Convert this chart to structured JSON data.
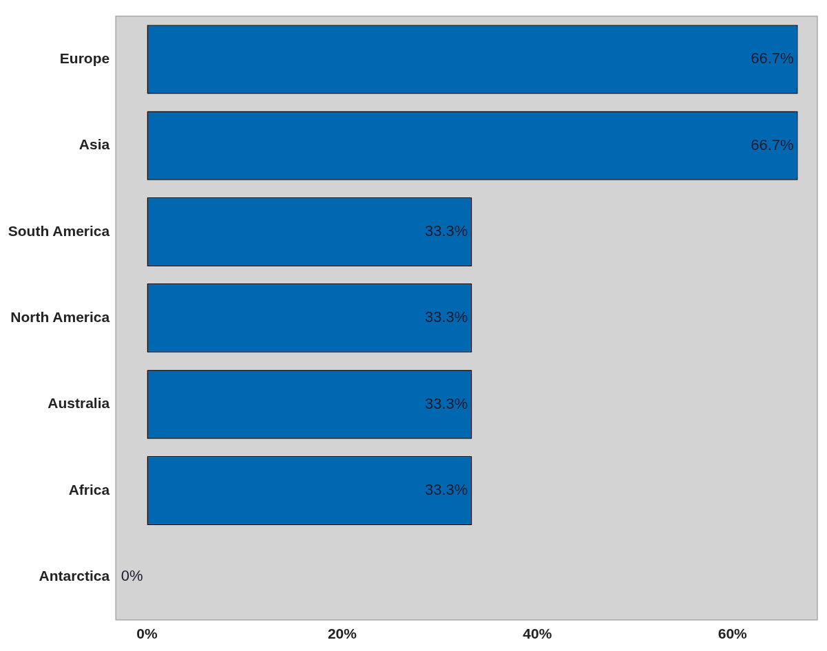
{
  "chart_data": {
    "type": "bar",
    "orientation": "horizontal",
    "categories": [
      "Europe",
      "Asia",
      "South America",
      "North America",
      "Australia",
      "Africa",
      "Antarctica"
    ],
    "values": [
      66.7,
      66.7,
      33.3,
      33.3,
      33.3,
      33.3,
      0
    ],
    "value_labels": [
      "66.7%",
      "66.7%",
      "33.3%",
      "33.3%",
      "33.3%",
      "33.3%",
      "0%"
    ],
    "color": "#0068b0",
    "xlim": [
      -3.2,
      68.7
    ],
    "xticks": [
      {
        "value": 0,
        "label": "0%"
      },
      {
        "value": 20,
        "label": "20%"
      },
      {
        "value": 40,
        "label": "40%"
      },
      {
        "value": 60,
        "label": "60%"
      }
    ],
    "grid": false,
    "legend": false
  }
}
